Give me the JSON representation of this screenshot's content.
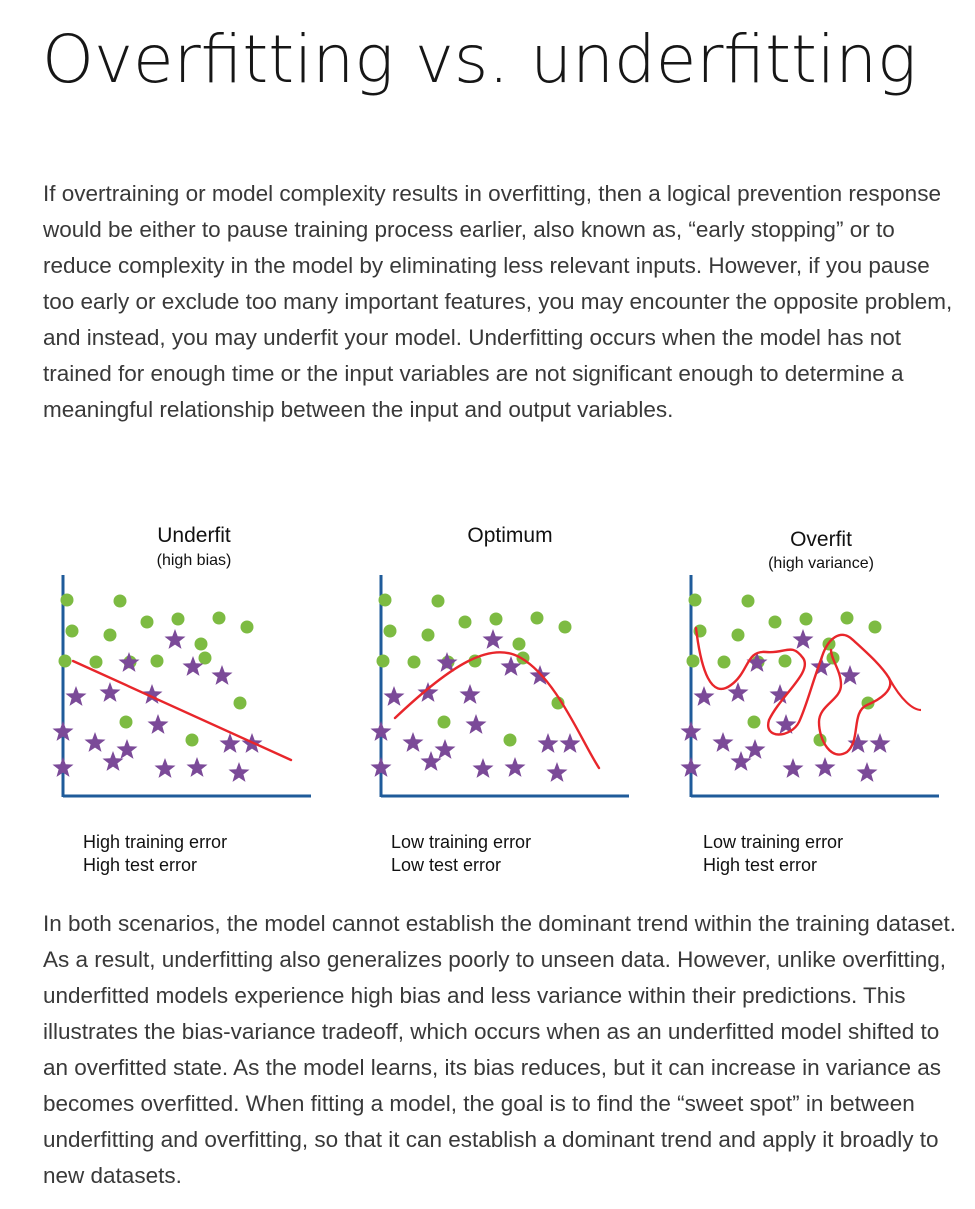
{
  "heading": "Overfitting vs. underfitting",
  "paragraphs": [
    "If overtraining or model complexity results in overfitting, then a logical prevention response would be either to pause training process earlier, also known as, “early stopping” or to reduce complexity in the model by eliminating less relevant inputs. However, if you pause too early or exclude too many important features, you may encounter the opposite problem, and instead, you may underfit your model. Underfitting occurs when the model has not trained for enough time or the input variables are not significant enough to determine a meaningful relationship between the input and output variables.",
    "In both scenarios, the model cannot establish the dominant trend within the training dataset. As a result, underfitting also generalizes poorly to unseen data. However, unlike overfitting, underfitted models experience high bias and less variance within their predictions. This illustrates the bias-variance tradeoff, which occurs when as an underfitted model shifted to an overfitted state. As the model learns, its bias reduces, but it can increase in variance as becomes overfitted. When fitting a model, the goal is to find the “sweet spot” in between underfitting and overfitting, so that it can establish a dominant trend and apply it broadly to new datasets."
  ],
  "figure": {
    "colors": {
      "dot": "#7dbb42",
      "star": "#7b4a98",
      "fit_line": "#e8262b",
      "axis": "#1f5b9a"
    },
    "panels": [
      {
        "title": "Underfit",
        "subtitle": "(high bias)",
        "error_line1": "High training error",
        "error_line2": "High test error",
        "fit": "straight-line"
      },
      {
        "title": "Optimum",
        "subtitle": "",
        "error_line1": "Low training error",
        "error_line2": "Low test error",
        "fit": "curve"
      },
      {
        "title": "Overfit",
        "subtitle": "(high variance)",
        "error_line1": "Low training error",
        "error_line2": "High test error",
        "fit": "wiggly-boundary"
      }
    ]
  }
}
